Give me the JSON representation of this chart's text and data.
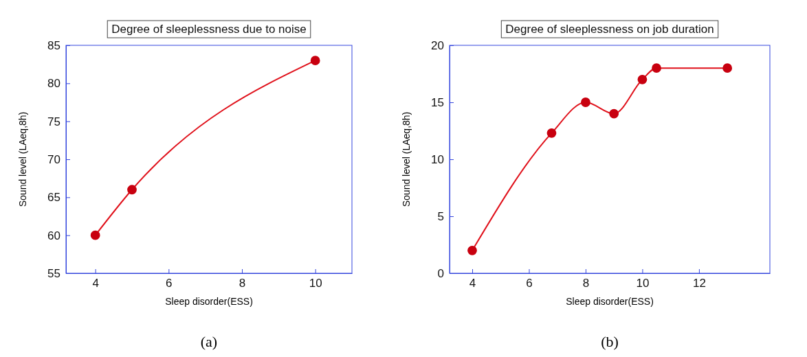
{
  "chart_data": [
    {
      "type": "line",
      "title": "Degree of sleeplessness due to noise",
      "xlabel": "Sleep disorder(ESS)",
      "ylabel": "Sound level (LAeq,8h)",
      "x": [
        4,
        5,
        10
      ],
      "series": [
        {
          "color": "#e0101a",
          "values": [
            60,
            66,
            83
          ]
        }
      ],
      "xlim": [
        3.2,
        11
      ],
      "xticks": [
        4,
        6,
        8,
        10
      ],
      "ylim": [
        55,
        85
      ],
      "yticks": [
        55,
        60,
        65,
        70,
        75,
        80,
        85
      ],
      "marker": "circle",
      "line_style": "solid",
      "grid": false,
      "annotations": [
        "(a)"
      ]
    },
    {
      "type": "line",
      "title": "Degree of sleeplessness on job duration",
      "xlabel": "Sleep disorder(ESS)",
      "ylabel": "Sound level (LAeq,8h)",
      "x": [
        4,
        6.8,
        8,
        9,
        10,
        10.5,
        13
      ],
      "series": [
        {
          "color": "#e0101a",
          "values": [
            2,
            12.3,
            15,
            14,
            17,
            18,
            18
          ]
        }
      ],
      "xlim": [
        3.2,
        14.5
      ],
      "xticks": [
        4,
        6,
        8,
        10,
        12
      ],
      "ylim": [
        0,
        20
      ],
      "yticks": [
        0,
        5,
        10,
        15,
        20
      ],
      "marker": "circle",
      "line_style": "solid",
      "grid": false,
      "annotations": [
        "(b)"
      ]
    }
  ]
}
